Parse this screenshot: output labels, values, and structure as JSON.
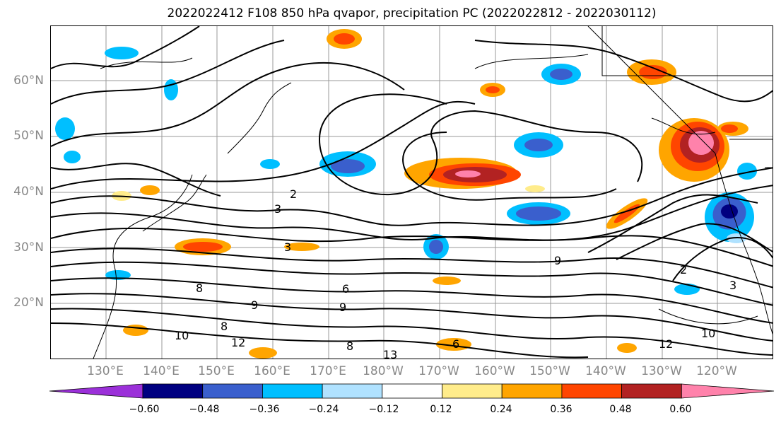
{
  "title": "2022022412 F108 850 hPa qvapor, precipitation PC (2022022812 - 2022030112)",
  "lat_labels": [
    "60°N",
    "50°N",
    "40°N",
    "30°N",
    "20°N"
  ],
  "lon_labels": [
    "130°E",
    "140°E",
    "150°E",
    "160°E",
    "170°E",
    "180°W",
    "170°W",
    "160°W",
    "150°W",
    "140°W",
    "130°W",
    "120°W"
  ],
  "contour_labels": [
    "2",
    "3",
    "3",
    "9",
    "9",
    "6",
    "8",
    "8",
    "10",
    "12",
    "12",
    "10",
    "13",
    "2",
    "3",
    "9",
    "8",
    "6"
  ],
  "colorbar": {
    "colors": [
      "#9b30d9",
      "#000080",
      "#3a5fcd",
      "#00bfff",
      "#b0e2ff",
      "#ffffff",
      "#ffec8b",
      "#ffa500",
      "#ff4500",
      "#b22222",
      "#ff82ab"
    ],
    "ticks": [
      "−0.60",
      "−0.48",
      "−0.36",
      "−0.24",
      "−0.12",
      "0.12",
      "0.24",
      "0.36",
      "0.48",
      "0.60"
    ]
  }
}
